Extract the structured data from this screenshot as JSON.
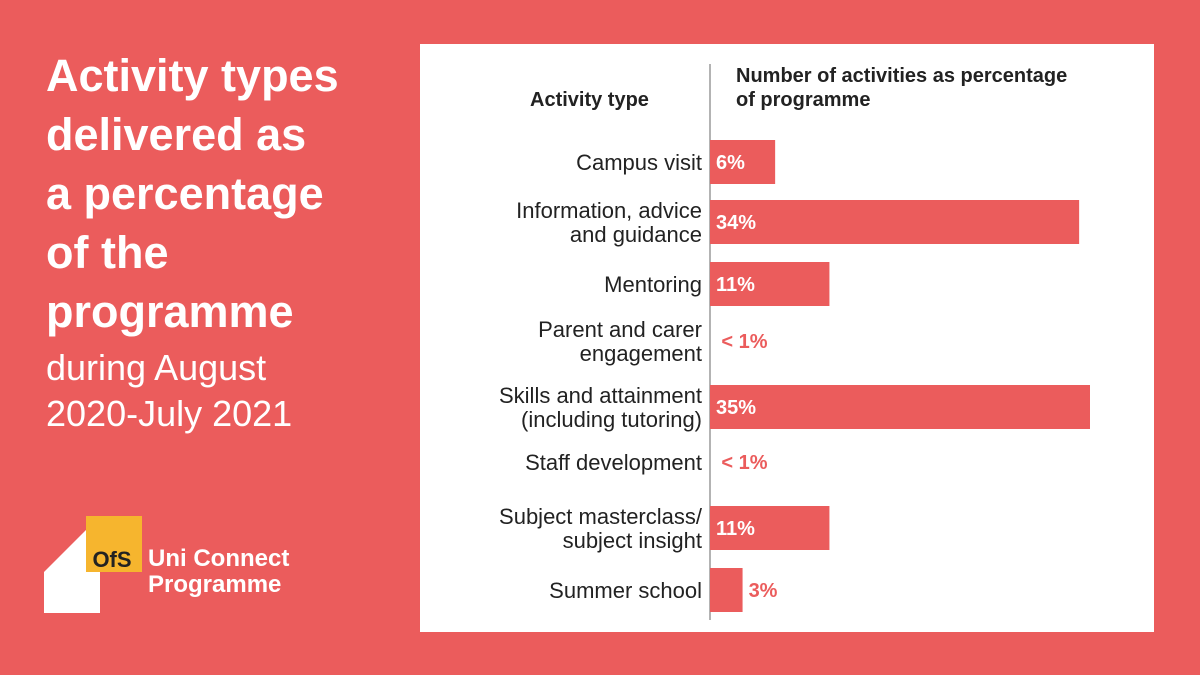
{
  "headline": {
    "title": "Activity types\ndelivered as\na percentage\nof the\nprogramme",
    "subtitle": "during August\n2020-July 2021"
  },
  "logo": {
    "badge": "OfS",
    "name": "Uni Connect\nProgramme",
    "badge_color": "#F6B52E"
  },
  "colors": {
    "background": "#EB5C5C",
    "bar": "#EB5C5C",
    "panel": "#FFFFFF",
    "text": "#222222"
  },
  "chart_data": {
    "type": "bar",
    "orientation": "horizontal",
    "category_header": "Activity type",
    "value_header": [
      "Number of activities as percentage",
      "of programme"
    ],
    "categories": [
      [
        "Campus visit"
      ],
      [
        "Information, advice",
        "and guidance"
      ],
      [
        "Mentoring"
      ],
      [
        "Parent and carer",
        "engagement"
      ],
      [
        "Skills and attainment",
        "(including tutoring)"
      ],
      [
        "Staff development"
      ],
      [
        "Subject masterclass/",
        "subject insight"
      ],
      [
        "Summer school"
      ]
    ],
    "values": [
      6,
      34,
      11,
      0.5,
      35,
      0.5,
      11,
      3
    ],
    "labels": [
      "6%",
      "34%",
      "11%",
      "< 1%",
      "35%",
      "< 1%",
      "11%",
      "3%"
    ],
    "xlim": [
      0,
      35
    ],
    "grid": false,
    "legend": "none"
  }
}
